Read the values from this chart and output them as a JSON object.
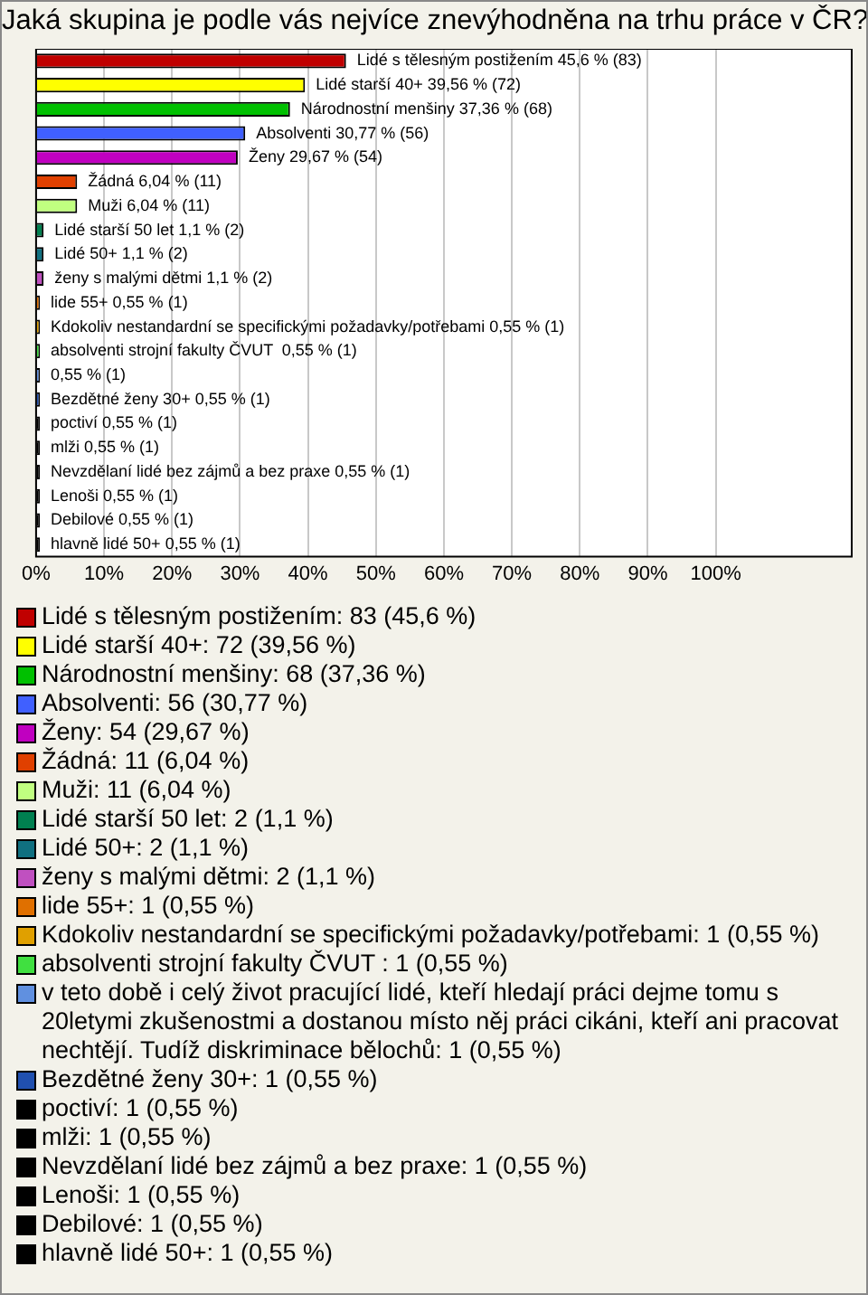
{
  "chart_data": {
    "type": "bar",
    "orientation": "horizontal",
    "title": "Jaká skupina je podle vás nejvíce znevýhodněna na trhu práce v ČR?",
    "categories": [
      "Lidé s tělesným postižením",
      "Lidé starší 40+",
      "Národnostní menšiny",
      "Absolventi",
      "Ženy",
      "Žádná",
      "Muži",
      "Lidé starší 50 let",
      "Lidé 50+",
      "ženy s malými dětmi",
      "lide 55+",
      "Kdokoliv nestandardní se specifickými požadavky/potřebami",
      "absolventi strojní fakulty ČVUT ",
      null,
      "Bezdětné ženy 30+",
      "poctiví",
      "mlži",
      "Nevzdělaní lidé bez zájmů a bez praxe",
      "Lenoši",
      "Debilové",
      "hlavně lidé 50+"
    ],
    "values": [
      45.6,
      39.56,
      37.36,
      30.77,
      29.67,
      6.04,
      6.04,
      1.1,
      1.1,
      1.1,
      0.55,
      0.55,
      0.55,
      0.55,
      0.55,
      0.55,
      0.55,
      0.55,
      0.55,
      0.55,
      0.55
    ],
    "value_labels": [
      "45,6 % (83)",
      "39,56 % (72)",
      "37,36 % (68)",
      "30,77 % (56)",
      "29,67 % (54)",
      "6,04 % (11)",
      "6,04 % (11)",
      "1,1 % (2)",
      "1,1 % (2)",
      "1,1 % (2)",
      "0,55 % (1)",
      "0,55 % (1)",
      "0,55 % (1)",
      "0,55 % (1)",
      "0,55 % (1)",
      "0,55 % (1)",
      "0,55 % (1)",
      "0,55 % (1)",
      "0,55 % (1)",
      "0,55 % (1)",
      "0,55 % (1)"
    ],
    "colors": [
      "#c00000",
      "#ffff00",
      "#00c000",
      "#4060ff",
      "#c000c0",
      "#e04000",
      "#c0ff80",
      "#008050",
      "#107080",
      "#c050c0",
      "#e07000",
      "#e0a000",
      "#40e040",
      "#6090e0",
      "#2050b0",
      "#000000",
      "#000000",
      "#000000",
      "#000000",
      "#000000",
      "#000000"
    ],
    "xlim": [
      0,
      120
    ],
    "xticks": [
      {
        "value": 0,
        "label": "0%"
      },
      {
        "value": 10,
        "label": "10%"
      },
      {
        "value": 20,
        "label": "20%"
      },
      {
        "value": 30,
        "label": "30%"
      },
      {
        "value": 40,
        "label": "40%"
      },
      {
        "value": 50,
        "label": "50%"
      },
      {
        "value": 60,
        "label": "60%"
      },
      {
        "value": 70,
        "label": "70%"
      },
      {
        "value": 80,
        "label": "80%"
      },
      {
        "value": 90,
        "label": "90%"
      },
      {
        "value": 100,
        "label": "100%"
      }
    ],
    "grid": "x",
    "annotations": [
      "Lidé s tělesným postižením: 83 (45,6 %)",
      "Lidé starší 40+: 72 (39,56 %)",
      "Národnostní menšiny: 68 (37,36 %)",
      "Absolventi: 56 (30,77 %)",
      "Ženy: 54 (29,67 %)",
      "Žádná: 11 (6,04 %)",
      "Muži: 11 (6,04 %)",
      "Lidé starší 50 let: 2 (1,1 %)",
      "Lidé 50+: 2 (1,1 %)",
      "ženy s malými dětmi: 2 (1,1 %)",
      "lide 55+: 1 (0,55 %)",
      "Kdokoliv nestandardní se specifickými požadavky/potřebami: 1 (0,55 %)",
      "absolventi strojní fakulty ČVUT : 1 (0,55 %)",
      "v teto době i celý život pracující lidé, kteří hledají práci dejme tomu s 20letymi zkušenostmi a dostanou místo něj práci cikáni, kteří ani pracovat nechtějí. Tudíž diskriminace bělochů: 1 (0,55 %)",
      "Bezdětné ženy 30+: 1 (0,55 %)",
      "poctiví: 1 (0,55 %)",
      "mlži: 1 (0,55 %)",
      "Nevzdělaní lidé bez zájmů a bez praxe: 1 (0,55 %)",
      "Lenoši: 1 (0,55 %)",
      "Debilové: 1 (0,55 %)",
      "hlavně lidé 50+: 1 (0,55 %)"
    ]
  }
}
